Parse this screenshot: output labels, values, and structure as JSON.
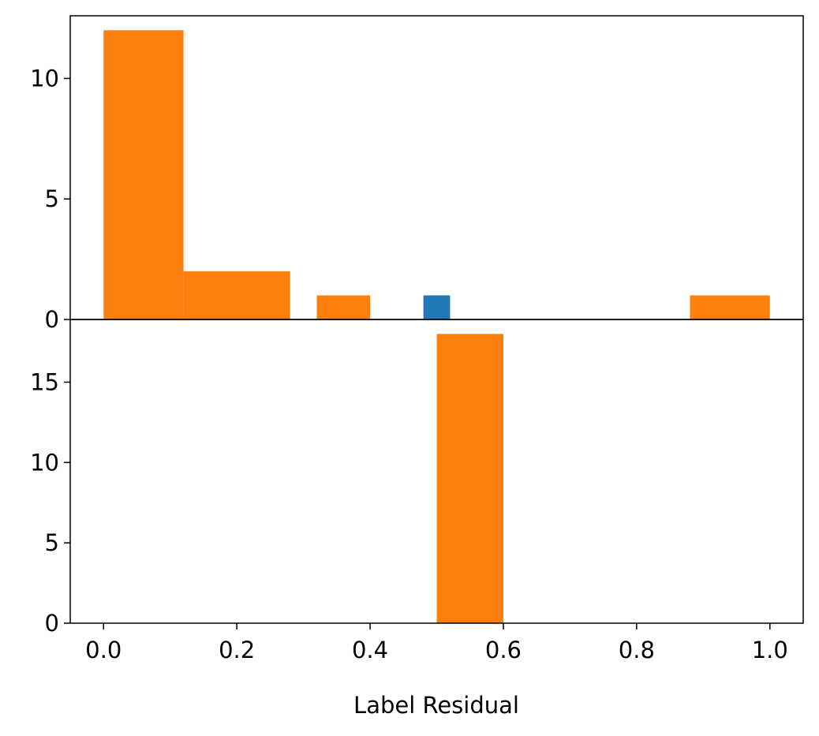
{
  "chart_data": {
    "type": "bar",
    "xlabel": "Label Residual",
    "xlim": [
      -0.05,
      1.05
    ],
    "x_ticks": [
      "0.0",
      "0.2",
      "0.4",
      "0.6",
      "0.8",
      "1.0"
    ],
    "colors": {
      "blue": "#1f77b4",
      "orange": "#ff7f0e"
    },
    "panels": [
      {
        "position": "top",
        "ylim": [
          0,
          12.6
        ],
        "y_ticks": [
          "0",
          "5",
          "10"
        ],
        "bars": [
          {
            "x0": 0.0,
            "x1": 0.12,
            "value": 12,
            "color": "orange"
          },
          {
            "x0": 0.12,
            "x1": 0.28,
            "value": 2,
            "color": "orange"
          },
          {
            "x0": 0.32,
            "x1": 0.4,
            "value": 1,
            "color": "orange"
          },
          {
            "x0": 0.48,
            "x1": 0.52,
            "value": 1,
            "color": "blue"
          },
          {
            "x0": 0.88,
            "x1": 1.0,
            "value": 1,
            "color": "orange"
          }
        ]
      },
      {
        "position": "bottom",
        "ylim": [
          0,
          18.9
        ],
        "y_ticks": [
          "0",
          "5",
          "10",
          "15"
        ],
        "bars": [
          {
            "x0": 0.5,
            "x1": 0.6,
            "value": 18,
            "color": "orange"
          }
        ]
      }
    ]
  }
}
